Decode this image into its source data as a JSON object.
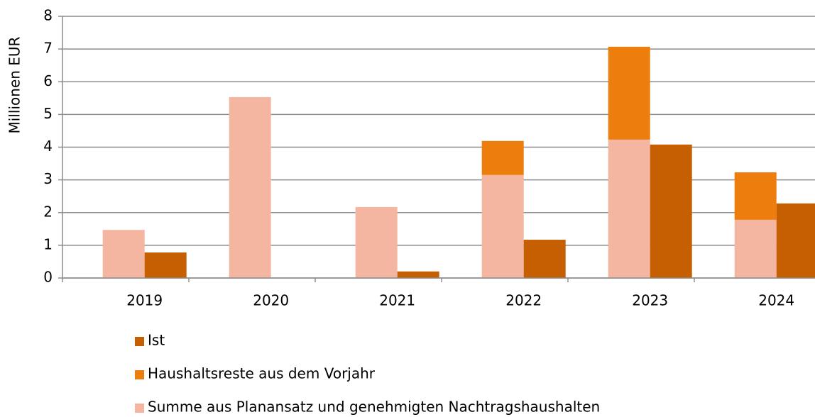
{
  "chart_data": {
    "type": "bar",
    "y_label": "Millionen EUR",
    "categories": [
      "2019",
      "2020",
      "2021",
      "2022",
      "2023",
      "2024"
    ],
    "series": [
      {
        "name": "Summe aus Planansatz und genehmigten Nachtragshaushalten",
        "color": "#f4b6a0",
        "values": [
          1.47,
          5.53,
          2.17,
          3.15,
          4.23,
          1.78
        ]
      },
      {
        "name": "Haushaltsreste aus dem Vorjahr",
        "color": "#ed7d0c",
        "values": [
          0,
          0,
          0,
          1.04,
          2.84,
          1.45
        ]
      },
      {
        "name": "Ist",
        "color": "#c55f02",
        "values": [
          0.78,
          0,
          0.2,
          1.17,
          4.08,
          2.28
        ]
      }
    ],
    "ylim": [
      0,
      8
    ],
    "yticks": [
      0,
      1,
      2,
      3,
      4,
      5,
      6,
      7,
      8
    ],
    "grid": true
  }
}
